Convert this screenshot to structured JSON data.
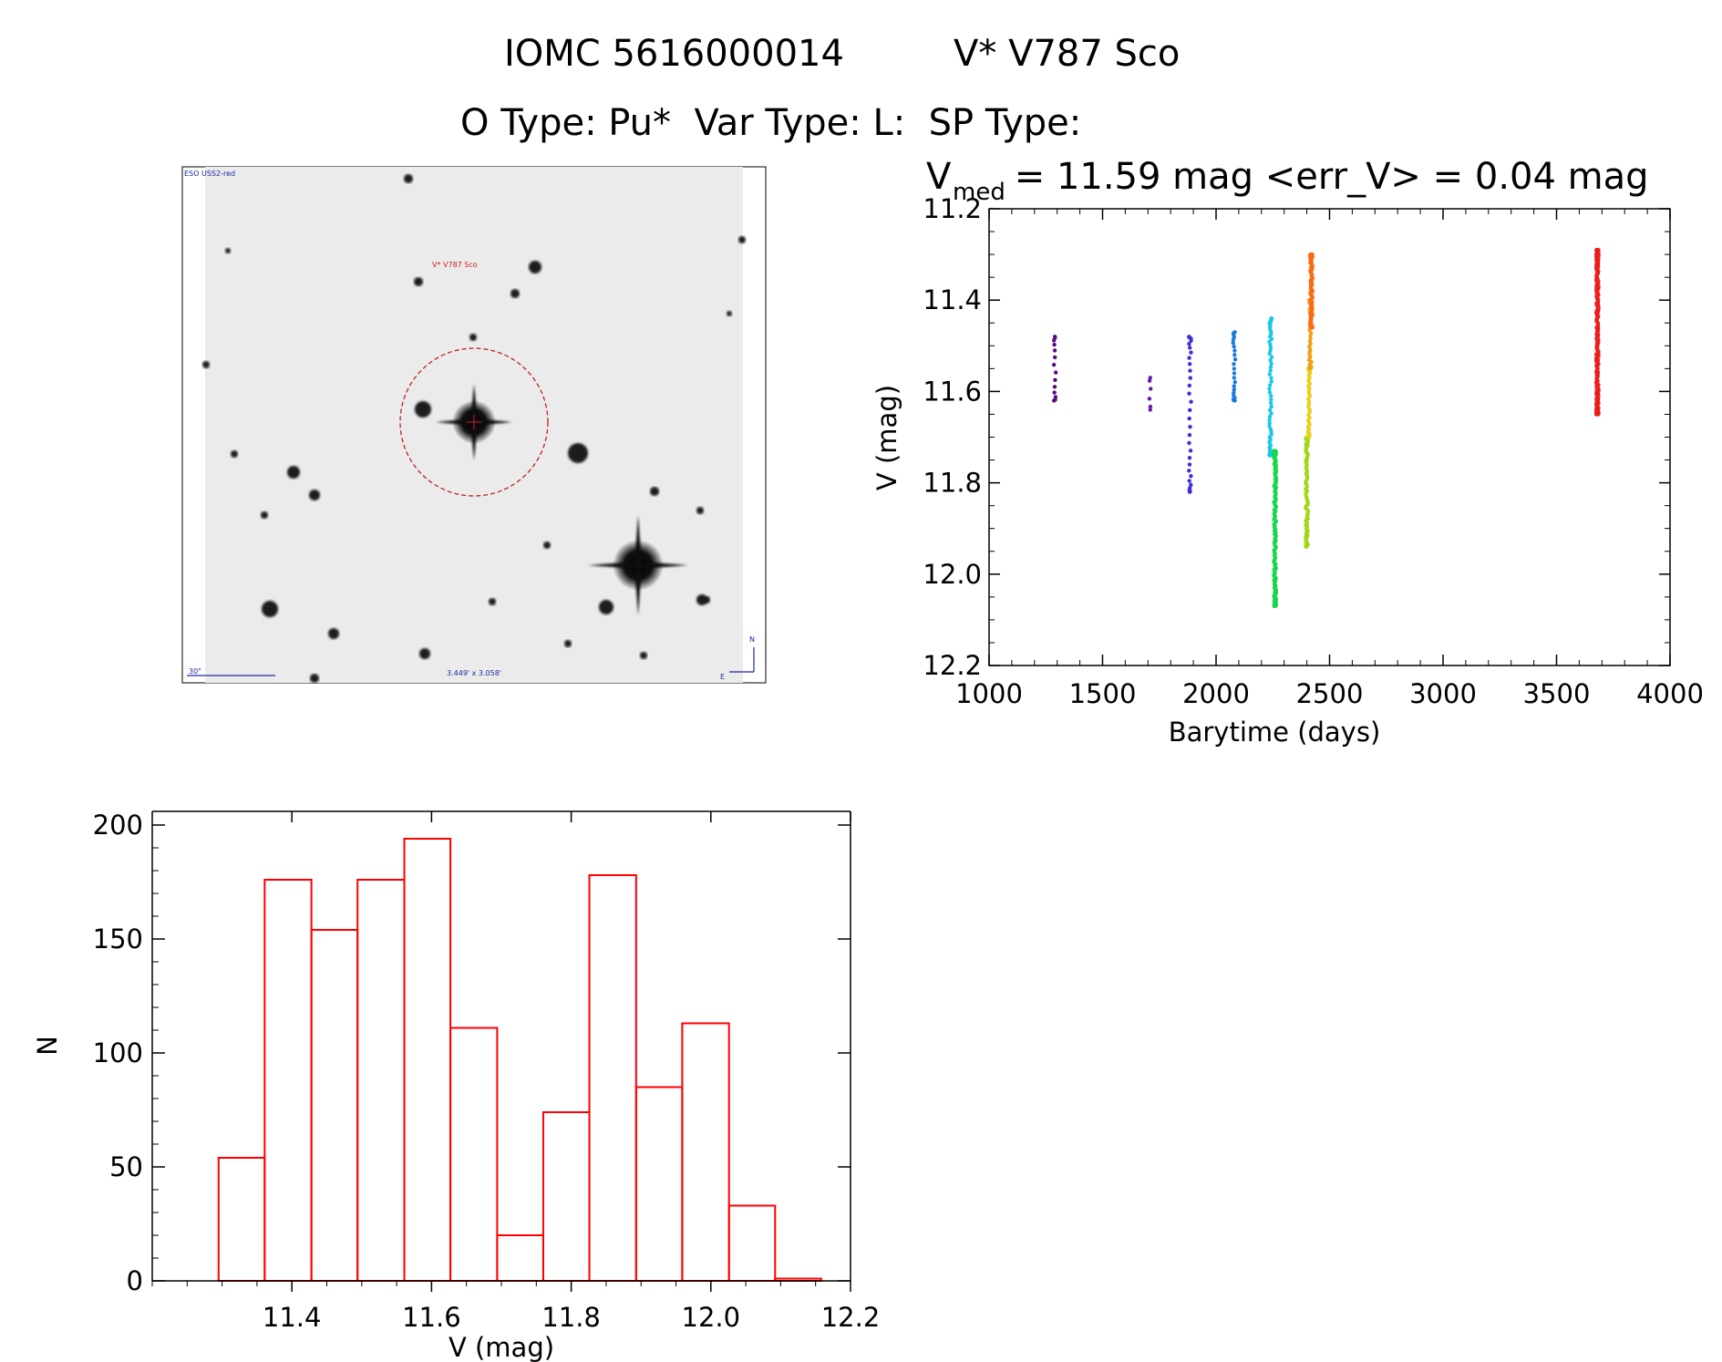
{
  "header": {
    "line1_left": "IOMC 5616000014",
    "line1_right": "V* V787 Sco",
    "line2": "O Type: Pu*  Var Type: L:  SP Type:"
  },
  "image_panel": {
    "survey_label": "ESO USS2-red",
    "target_label": "V* V787 Sco",
    "scale_label": "30\"",
    "size_label": "3.449' x 3.058'",
    "north_label": "N",
    "east_label": "E"
  },
  "chart_data": [
    {
      "type": "scatter",
      "title_main": "V",
      "title_sub": "med",
      "title_rest": " = 11.59 mag <err_V> = 0.04 mag",
      "xlabel": "Barytime (days)",
      "ylabel": "V (mag)",
      "xlim": [
        1000,
        4000
      ],
      "ylim": [
        12.2,
        11.2
      ],
      "y_inverted": true,
      "xticks": [
        "1000",
        "1500",
        "2000",
        "2500",
        "3000",
        "3500",
        "4000"
      ],
      "yticks": [
        "11.2",
        "11.4",
        "11.6",
        "11.8",
        "12.0",
        "12.2"
      ],
      "groups": [
        {
          "x": 1290,
          "ymin": 11.48,
          "ymax": 11.62,
          "n": 14,
          "color": "#5a0a82"
        },
        {
          "x": 1710,
          "ymin": 11.57,
          "ymax": 11.64,
          "n": 6,
          "color": "#6a18b0"
        },
        {
          "x": 1885,
          "ymin": 11.48,
          "ymax": 11.82,
          "n": 30,
          "color": "#3c2ed8"
        },
        {
          "x": 2080,
          "ymin": 11.47,
          "ymax": 11.62,
          "n": 24,
          "color": "#1a7ae0"
        },
        {
          "x": 2240,
          "ymin": 11.44,
          "ymax": 11.74,
          "n": 60,
          "color": "#18c8e8"
        },
        {
          "x": 2260,
          "ymin": 11.73,
          "ymax": 12.07,
          "n": 150,
          "color": "#18d84a"
        },
        {
          "x": 2400,
          "ymin": 11.7,
          "ymax": 11.94,
          "n": 90,
          "color": "#a0d818"
        },
        {
          "x": 2410,
          "ymin": 11.55,
          "ymax": 11.7,
          "n": 40,
          "color": "#e8d018"
        },
        {
          "x": 2415,
          "ymin": 11.4,
          "ymax": 11.55,
          "n": 40,
          "color": "#f0a018"
        },
        {
          "x": 2420,
          "ymin": 11.3,
          "ymax": 11.46,
          "n": 100,
          "color": "#ff6a10"
        },
        {
          "x": 3680,
          "ymin": 11.29,
          "ymax": 11.65,
          "n": 260,
          "color": "#ee1c1c"
        }
      ]
    },
    {
      "type": "bar",
      "subtype": "histogram",
      "xlabel": "V (mag)",
      "ylabel": "N",
      "xlim": [
        11.2,
        12.2
      ],
      "ylim": [
        0,
        200
      ],
      "xticks": [
        "11.4",
        "11.6",
        "11.8",
        "12.0",
        "12.2"
      ],
      "yticks": [
        "0",
        "50",
        "100",
        "150",
        "200"
      ],
      "bin_edges": [
        11.295,
        11.361,
        11.428,
        11.494,
        11.561,
        11.627,
        11.694,
        11.76,
        11.826,
        11.893,
        11.959,
        12.026,
        12.092,
        12.158
      ],
      "values": [
        54,
        176,
        154,
        176,
        194,
        111,
        20,
        74,
        178,
        85,
        113,
        33,
        1
      ],
      "color": "#ff0000"
    }
  ]
}
